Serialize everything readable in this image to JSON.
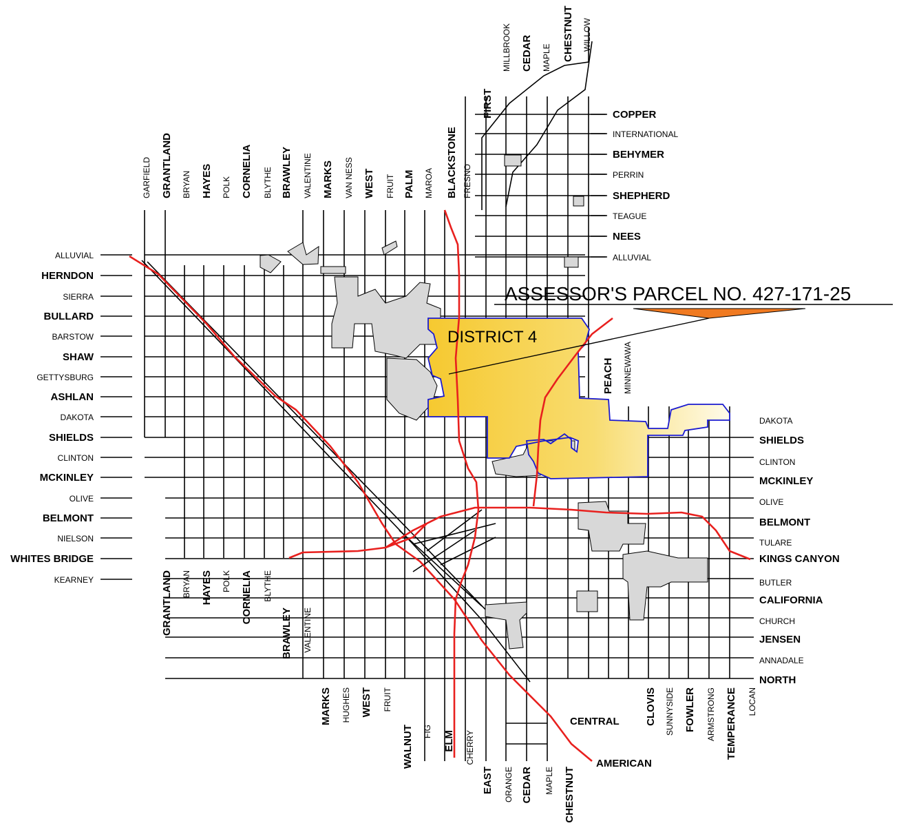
{
  "colors": {
    "district_fill_left": "#f6c930",
    "district_fill_right": "#fff8dc",
    "district_border": "#1a1ad0",
    "freeway": "#e8201e",
    "county_island": "#d8d8d8",
    "parcel_pointer": "#f07a21"
  },
  "callouts": {
    "parcel": "ASSESSOR'S PARCEL NO. 427-171-25",
    "district": "DISTRICT 4"
  },
  "west_streets": [
    {
      "name": "ALLUVIAL",
      "major": false
    },
    {
      "name": "HERNDON",
      "major": true
    },
    {
      "name": "SIERRA",
      "major": false
    },
    {
      "name": "BULLARD",
      "major": true
    },
    {
      "name": "BARSTOW",
      "major": false
    },
    {
      "name": "SHAW",
      "major": true
    },
    {
      "name": "GETTYSBURG",
      "major": false
    },
    {
      "name": "ASHLAN",
      "major": true
    },
    {
      "name": "DAKOTA",
      "major": false
    },
    {
      "name": "SHIELDS",
      "major": true
    },
    {
      "name": "CLINTON",
      "major": false
    },
    {
      "name": "MCKINLEY",
      "major": true
    },
    {
      "name": "OLIVE",
      "major": false
    },
    {
      "name": "BELMONT",
      "major": true
    },
    {
      "name": "NIELSON",
      "major": false
    },
    {
      "name": "WHITES BRIDGE",
      "major": true
    },
    {
      "name": "KEARNEY",
      "major": false
    }
  ],
  "northeast_streets": [
    {
      "name": "COPPER",
      "major": true
    },
    {
      "name": "INTERNATIONAL",
      "major": false
    },
    {
      "name": "BEHYMER",
      "major": true
    },
    {
      "name": "PERRIN",
      "major": false
    },
    {
      "name": "SHEPHERD",
      "major": true
    },
    {
      "name": "TEAGUE",
      "major": false
    },
    {
      "name": "NEES",
      "major": true
    },
    {
      "name": "ALLUVIAL",
      "major": false
    }
  ],
  "east_streets": [
    {
      "name": "DAKOTA",
      "major": false
    },
    {
      "name": "SHIELDS",
      "major": true
    },
    {
      "name": "CLINTON",
      "major": false
    },
    {
      "name": "MCKINLEY",
      "major": true
    },
    {
      "name": "OLIVE",
      "major": false
    },
    {
      "name": "BELMONT",
      "major": true
    },
    {
      "name": "TULARE",
      "major": false
    },
    {
      "name": "KINGS CANYON",
      "major": true
    },
    {
      "name": "BUTLER",
      "major": false
    },
    {
      "name": "CALIFORNIA",
      "major": true
    },
    {
      "name": "CHURCH",
      "major": false
    },
    {
      "name": "JENSEN",
      "major": true
    },
    {
      "name": "ANNADALE",
      "major": false
    },
    {
      "name": "NORTH",
      "major": true
    }
  ],
  "north_avenues": [
    {
      "name": "GARFIELD",
      "major": false
    },
    {
      "name": "GRANTLAND",
      "major": true
    },
    {
      "name": "BRYAN",
      "major": false
    },
    {
      "name": "HAYES",
      "major": true
    },
    {
      "name": "POLK",
      "major": false
    },
    {
      "name": "CORNELIA",
      "major": true
    },
    {
      "name": "BLYTHE",
      "major": false
    },
    {
      "name": "BRAWLEY",
      "major": true
    },
    {
      "name": "VALENTINE",
      "major": false
    },
    {
      "name": "MARKS",
      "major": true
    },
    {
      "name": "VAN NESS",
      "major": false
    },
    {
      "name": "WEST",
      "major": true
    },
    {
      "name": "FRUIT",
      "major": false
    },
    {
      "name": "PALM",
      "major": true
    },
    {
      "name": "MAROA",
      "major": false
    },
    {
      "name": "BLACKSTONE",
      "major": true
    },
    {
      "name": "FRESNO",
      "major": false
    }
  ],
  "top_avenues": [
    {
      "name": "FIRST",
      "major": true
    },
    {
      "name": "MILLBROOK",
      "major": false
    },
    {
      "name": "CEDAR",
      "major": true
    },
    {
      "name": "MAPLE",
      "major": false
    },
    {
      "name": "CHESTNUT",
      "major": true
    },
    {
      "name": "WILLOW",
      "major": false
    }
  ],
  "mid_avenues": [
    {
      "name": "PEACH",
      "major": true
    },
    {
      "name": "MINNEWAWA",
      "major": false
    }
  ],
  "southwest_avenues": [
    {
      "name": "GRANTLAND",
      "major": true
    },
    {
      "name": "BRYAN",
      "major": false
    },
    {
      "name": "HAYES",
      "major": true
    },
    {
      "name": "POLK",
      "major": false
    },
    {
      "name": "CORNELIA",
      "major": true
    },
    {
      "name": "BLYTHE",
      "major": false
    },
    {
      "name": "BRAWLEY",
      "major": true
    },
    {
      "name": "VALENTINE",
      "major": false
    }
  ],
  "south_avenues": [
    {
      "name": "MARKS",
      "major": true
    },
    {
      "name": "HUGHES",
      "major": false
    },
    {
      "name": "WEST",
      "major": true
    },
    {
      "name": "FRUIT",
      "major": false
    },
    {
      "name": "WALNUT",
      "major": true
    },
    {
      "name": "FIG",
      "major": false
    },
    {
      "name": "ELM",
      "major": true
    },
    {
      "name": "CHERRY",
      "major": false
    },
    {
      "name": "EAST",
      "major": true
    },
    {
      "name": "ORANGE",
      "major": false
    },
    {
      "name": "CEDAR",
      "major": true
    },
    {
      "name": "MAPLE",
      "major": false
    },
    {
      "name": "CHESTNUT",
      "major": true
    }
  ],
  "southeast_avenues": [
    {
      "name": "CLOVIS",
      "major": true
    },
    {
      "name": "SUNNYSIDE",
      "major": false
    },
    {
      "name": "FOWLER",
      "major": true
    },
    {
      "name": "ARMSTRONG",
      "major": false
    },
    {
      "name": "TEMPERANCE",
      "major": true
    },
    {
      "name": "LOCAN",
      "major": false
    }
  ],
  "freeway_labels": {
    "central": "CENTRAL",
    "american": "AMERICAN"
  }
}
